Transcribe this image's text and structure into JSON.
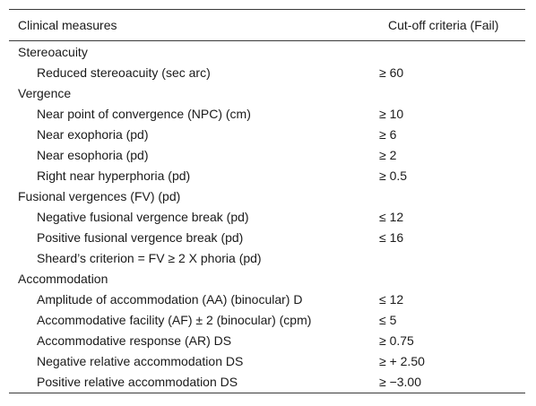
{
  "table": {
    "headers": {
      "measure": "Clinical measures",
      "cutoff": "Cut-off criteria (Fail)"
    },
    "rows": [
      {
        "measure": "Stereoacuity",
        "cutoff": "",
        "type": "section"
      },
      {
        "measure": "Reduced stereoacuity (sec arc)",
        "cutoff": "≥ 60",
        "type": "item"
      },
      {
        "measure": "Vergence",
        "cutoff": "",
        "type": "section"
      },
      {
        "measure": "Near point of convergence (NPC) (cm)",
        "cutoff": "≥ 10",
        "type": "item"
      },
      {
        "measure": "Near exophoria (pd)",
        "cutoff": "≥ 6",
        "type": "item"
      },
      {
        "measure": "Near esophoria (pd)",
        "cutoff": "≥ 2",
        "type": "item"
      },
      {
        "measure": "Right near hyperphoria (pd)",
        "cutoff": "≥ 0.5",
        "type": "item"
      },
      {
        "measure": "Fusional vergences (FV) (pd)",
        "cutoff": "",
        "type": "section"
      },
      {
        "measure": "Negative fusional vergence break (pd)",
        "cutoff": "≤ 12",
        "type": "item"
      },
      {
        "measure": "Positive fusional vergence break (pd)",
        "cutoff": "≤ 16",
        "type": "item"
      },
      {
        "measure": "Sheard’s criterion = FV ≥ 2 X phoria (pd)",
        "cutoff": "",
        "type": "item"
      },
      {
        "measure": "Accommodation",
        "cutoff": "",
        "type": "section"
      },
      {
        "measure": "Amplitude of accommodation (AA) (binocular) D",
        "cutoff": "≤ 12",
        "type": "item"
      },
      {
        "measure": "Accommodative facility (AF) ± 2 (binocular) (cpm)",
        "cutoff": "≤ 5",
        "type": "item"
      },
      {
        "measure": "Accommodative response (AR) DS",
        "cutoff": "≥ 0.75",
        "type": "item"
      },
      {
        "measure": "Negative relative accommodation DS",
        "cutoff": "≥ + 2.50",
        "type": "item"
      },
      {
        "measure": "Positive relative accommodation DS",
        "cutoff": "≥ −3.00",
        "type": "item"
      }
    ]
  },
  "colors": {
    "text": "#1a1a1a",
    "rule": "#3a3a3a",
    "background": "#ffffff"
  }
}
